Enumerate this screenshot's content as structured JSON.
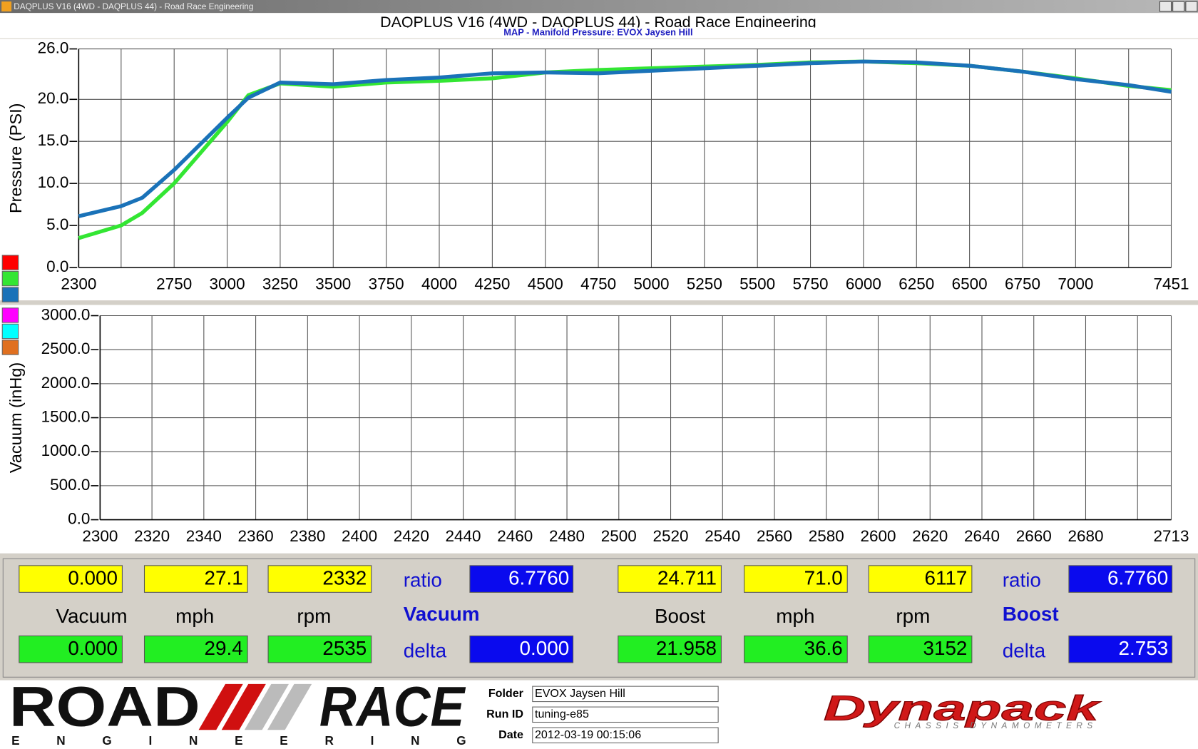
{
  "window": {
    "title": "DAQPLUS V16 (4WD - DAQPLUS 44) - Road Race Engineering"
  },
  "header": {
    "title": "DAQPLUS V16 (4WD - DAQPLUS 44) - Road Race Engineering",
    "subtitle": "MAP - Manifold Pressure: EVOX Jaysen Hill"
  },
  "chart_data": [
    {
      "type": "line",
      "ylabel": "Pressure (PSI)",
      "grid": true,
      "xlim": [
        2300,
        7451
      ],
      "xticks": [
        2300,
        {
          "value": 2500,
          "label": null
        },
        2750,
        3000,
        3250,
        3500,
        3750,
        4000,
        4250,
        4500,
        4750,
        5000,
        5250,
        5500,
        5750,
        6000,
        6250,
        6500,
        6750,
        7000,
        {
          "value": 7250,
          "label": null
        },
        7451
      ],
      "ylim": [
        0,
        26
      ],
      "yticks": [
        {
          "value": 0,
          "label": "0.0"
        },
        {
          "value": 5,
          "label": "5.0"
        },
        {
          "value": 10,
          "label": "10.0"
        },
        {
          "value": 15,
          "label": "15.0"
        },
        {
          "value": 20,
          "label": "20.0"
        },
        {
          "value": 26,
          "label": "26.0"
        }
      ],
      "x": [
        2300,
        2500,
        2600,
        2750,
        3000,
        3100,
        3250,
        3500,
        3750,
        4000,
        4250,
        4500,
        4750,
        5000,
        5250,
        5500,
        5750,
        6000,
        6250,
        6500,
        6750,
        7000,
        7250,
        7451
      ],
      "series": [
        {
          "color": "#ff0000",
          "values": [
            null,
            null,
            null,
            null,
            null,
            null,
            null,
            null,
            null,
            null,
            null,
            null,
            null,
            null,
            null,
            null,
            null,
            null,
            null,
            null,
            null,
            null,
            null,
            null
          ]
        },
        {
          "color": "#33e633",
          "values": [
            3.5,
            5.0,
            6.5,
            10.0,
            17.3,
            20.5,
            21.9,
            21.5,
            22.0,
            22.2,
            22.5,
            23.2,
            23.5,
            23.7,
            23.9,
            24.1,
            24.4,
            24.5,
            24.3,
            24.0,
            23.3,
            22.5,
            21.6,
            21.1
          ]
        },
        {
          "color": "#1a72b8",
          "values": [
            6.1,
            7.3,
            8.3,
            11.6,
            17.8,
            20.2,
            22.0,
            21.8,
            22.3,
            22.6,
            23.1,
            23.2,
            23.1,
            23.4,
            23.7,
            24.0,
            24.3,
            24.5,
            24.4,
            24.0,
            23.3,
            22.4,
            21.7,
            20.9
          ]
        }
      ]
    },
    {
      "type": "line",
      "ylabel": "Vacuum (inHg)",
      "grid": true,
      "xlim": [
        2300,
        2713
      ],
      "xticks": [
        2300,
        2320,
        2340,
        2360,
        2380,
        2400,
        2420,
        2440,
        2460,
        2480,
        2500,
        2520,
        2540,
        2560,
        2580,
        2600,
        2620,
        2640,
        2660,
        2680,
        {
          "value": 2700,
          "label": null
        },
        2713
      ],
      "ylim": [
        0,
        3000
      ],
      "yticks": [
        {
          "value": 0,
          "label": "0.0"
        },
        {
          "value": 500,
          "label": "500.0"
        },
        {
          "value": 1000,
          "label": "1000.0"
        },
        {
          "value": 1500,
          "label": "1500.0"
        },
        {
          "value": 2000,
          "label": "2000.0"
        },
        {
          "value": 2500,
          "label": "2500.0"
        },
        {
          "value": 3000,
          "label": "3000.0"
        }
      ],
      "x": [],
      "series": [
        {
          "color": "#ff00ff",
          "values": []
        },
        {
          "color": "#00ffff",
          "values": []
        },
        {
          "color": "#e07020",
          "values": []
        }
      ]
    }
  ],
  "readouts": {
    "left": {
      "top": [
        "0.000",
        "27.1",
        "2332"
      ],
      "labels": [
        "Vacuum",
        "mph",
        "rpm"
      ],
      "bottom": [
        "0.000",
        "29.4",
        "2535"
      ],
      "ratio_label": "ratio",
      "ratio": "6.7760",
      "mode": "Vacuum",
      "delta_label": "delta",
      "delta": "0.000"
    },
    "right": {
      "top": [
        "24.711",
        "71.0",
        "6117"
      ],
      "labels": [
        "Boost",
        "mph",
        "rpm"
      ],
      "bottom": [
        "21.958",
        "36.6",
        "3152"
      ],
      "ratio_label": "ratio",
      "ratio": "6.7760",
      "mode": "Boost",
      "delta_label": "delta",
      "delta": "2.753"
    }
  },
  "footer": {
    "logo": {
      "word1": "ROAD",
      "word2": "RACE",
      "tagline": "E N G I N E E R I N G"
    },
    "fields": [
      {
        "label": "Folder",
        "value": "EVOX Jaysen Hill"
      },
      {
        "label": "Run ID",
        "value": "tuning-e85"
      },
      {
        "label": "Date",
        "value": "2012-03-19 00:15:06"
      }
    ],
    "brand": {
      "name": "Dynapack",
      "tagline": "CHASSIS DYNAMOMETERS"
    }
  }
}
